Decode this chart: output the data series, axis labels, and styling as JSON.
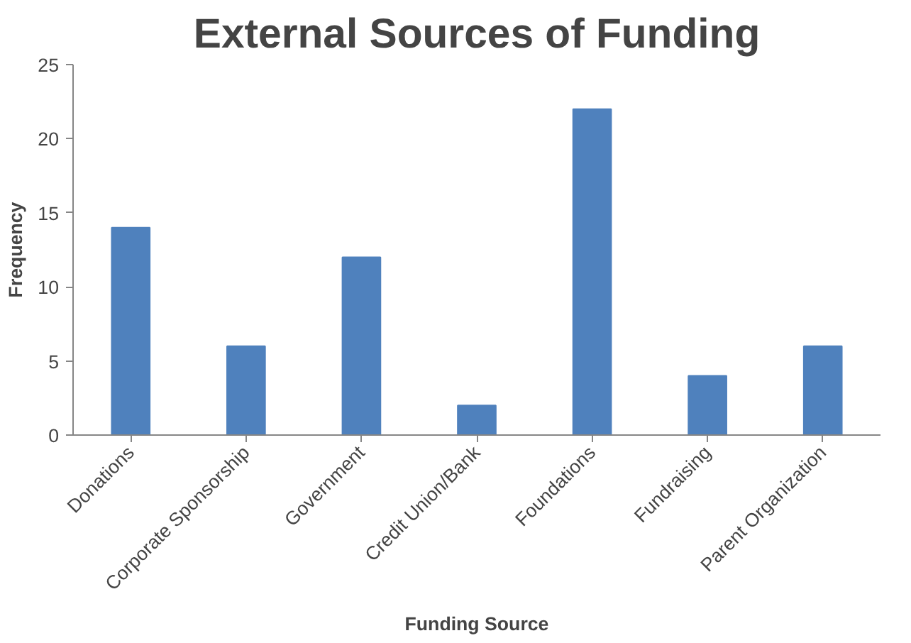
{
  "chart_data": {
    "type": "bar",
    "title": "External Sources of Funding",
    "xlabel": "Funding Source",
    "ylabel": "Frequency",
    "categories": [
      "Donations",
      "Corporate Sponsorship",
      "Government",
      "Credit Union/Bank",
      "Foundations",
      "Fundraising",
      "Parent Organization"
    ],
    "values": [
      14,
      6,
      12,
      2,
      22,
      4,
      6
    ],
    "color": "#4f81bd",
    "ylim": [
      0,
      25
    ],
    "yticks": [
      0,
      5,
      10,
      15,
      20,
      25
    ],
    "grid": false
  }
}
